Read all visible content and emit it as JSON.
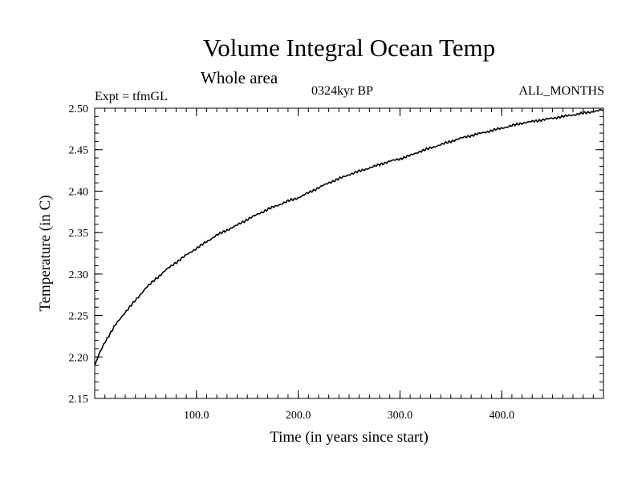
{
  "chart_data": {
    "type": "line",
    "title": "Volume Integral Ocean Temp",
    "subtitle": "Whole area",
    "experiment": "Expt = tfmGL",
    "period": "0324kyr BP",
    "months": "ALL_MONTHS",
    "xlabel": "Time (in years since start)",
    "ylabel": "Temperature (in C)",
    "xlim": [
      0,
      500
    ],
    "ylim": [
      2.15,
      2.5
    ],
    "x_ticks": [
      100,
      200,
      300,
      400
    ],
    "x_tick_labels": [
      "100.0",
      "200.0",
      "300.0",
      "400.0"
    ],
    "y_ticks": [
      2.15,
      2.2,
      2.25,
      2.3,
      2.35,
      2.4,
      2.45,
      2.5
    ],
    "y_tick_labels": [
      "2.15",
      "2.20",
      "2.25",
      "2.30",
      "2.35",
      "2.40",
      "2.45",
      "2.50"
    ],
    "grid": false,
    "series": [
      {
        "color": "#000000",
        "x": [
          0,
          5,
          10,
          20,
          30,
          40,
          50,
          60,
          70,
          80,
          90,
          100,
          110,
          120,
          130,
          140,
          150,
          160,
          170,
          180,
          190,
          200,
          210,
          220,
          230,
          240,
          250,
          260,
          270,
          280,
          290,
          300,
          310,
          320,
          330,
          340,
          350,
          360,
          370,
          380,
          390,
          400,
          410,
          420,
          430,
          440,
          450,
          460,
          470,
          480,
          490,
          500
        ],
        "y": [
          2.19,
          2.205,
          2.218,
          2.238,
          2.254,
          2.268,
          2.283,
          2.294,
          2.305,
          2.314,
          2.323,
          2.331,
          2.339,
          2.347,
          2.353,
          2.359,
          2.366,
          2.372,
          2.378,
          2.383,
          2.388,
          2.392,
          2.398,
          2.404,
          2.41,
          2.415,
          2.42,
          2.424,
          2.428,
          2.432,
          2.436,
          2.439,
          2.443,
          2.448,
          2.452,
          2.456,
          2.46,
          2.464,
          2.467,
          2.47,
          2.473,
          2.476,
          2.479,
          2.482,
          2.484,
          2.486,
          2.488,
          2.49,
          2.492,
          2.494,
          2.496,
          2.498
        ]
      }
    ]
  }
}
